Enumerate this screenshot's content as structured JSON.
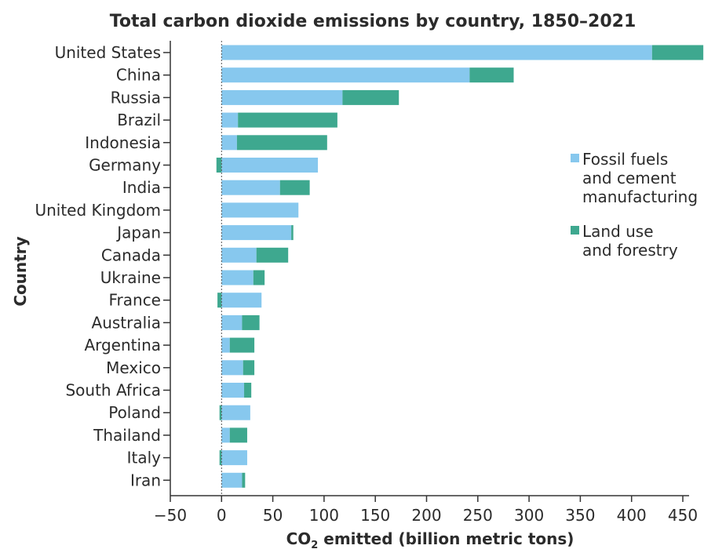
{
  "title": "Total carbon dioxide emissions by country, 1850–2021",
  "colors": {
    "fossil": "#87C8EE",
    "land": "#3EA88F",
    "axis": "#333333",
    "zero_line": "#555555"
  },
  "chart_data": {
    "type": "bar",
    "orientation": "horizontal",
    "stacked": true,
    "title": "Total carbon dioxide emissions by country, 1850–2021",
    "xlabel_prefix": "CO",
    "xlabel_sub": "2",
    "xlabel_suffix": " emitted (billion metric tons)",
    "ylabel": "Country",
    "xlim": [
      -50,
      450
    ],
    "xticks": [
      -50,
      0,
      50,
      100,
      150,
      200,
      250,
      300,
      350,
      400,
      450
    ],
    "xtick_labels": [
      "−50",
      "0",
      "50",
      "100",
      "150",
      "200",
      "250",
      "300",
      "350",
      "400",
      "450"
    ],
    "grid": false,
    "legend_position": "right",
    "categories": [
      "United States",
      "China",
      "Russia",
      "Brazil",
      "Indonesia",
      "Germany",
      "India",
      "United Kingdom",
      "Japan",
      "Canada",
      "Ukraine",
      "France",
      "Australia",
      "Argentina",
      "Mexico",
      "South Africa",
      "Poland",
      "Thailand",
      "Italy",
      "Iran"
    ],
    "series": [
      {
        "name": "Fossil fuels and cement manufacturing",
        "legend_lines": [
          "Fossil fuels",
          "and cement",
          "manufacturing"
        ],
        "color": "#87C8EE",
        "values": [
          420,
          242,
          118,
          16,
          15,
          94,
          57,
          75,
          68,
          34,
          31,
          39,
          20,
          8,
          21,
          22,
          28,
          8,
          25,
          20
        ]
      },
      {
        "name": "Land use and forestry",
        "legend_lines": [
          "Land use",
          "and forestry"
        ],
        "color": "#3EA88F",
        "values": [
          50,
          43,
          55,
          97,
          88,
          -5,
          29,
          0,
          2,
          31,
          11,
          -4,
          17,
          24,
          11,
          7,
          -2,
          17,
          -2,
          3
        ]
      }
    ]
  }
}
